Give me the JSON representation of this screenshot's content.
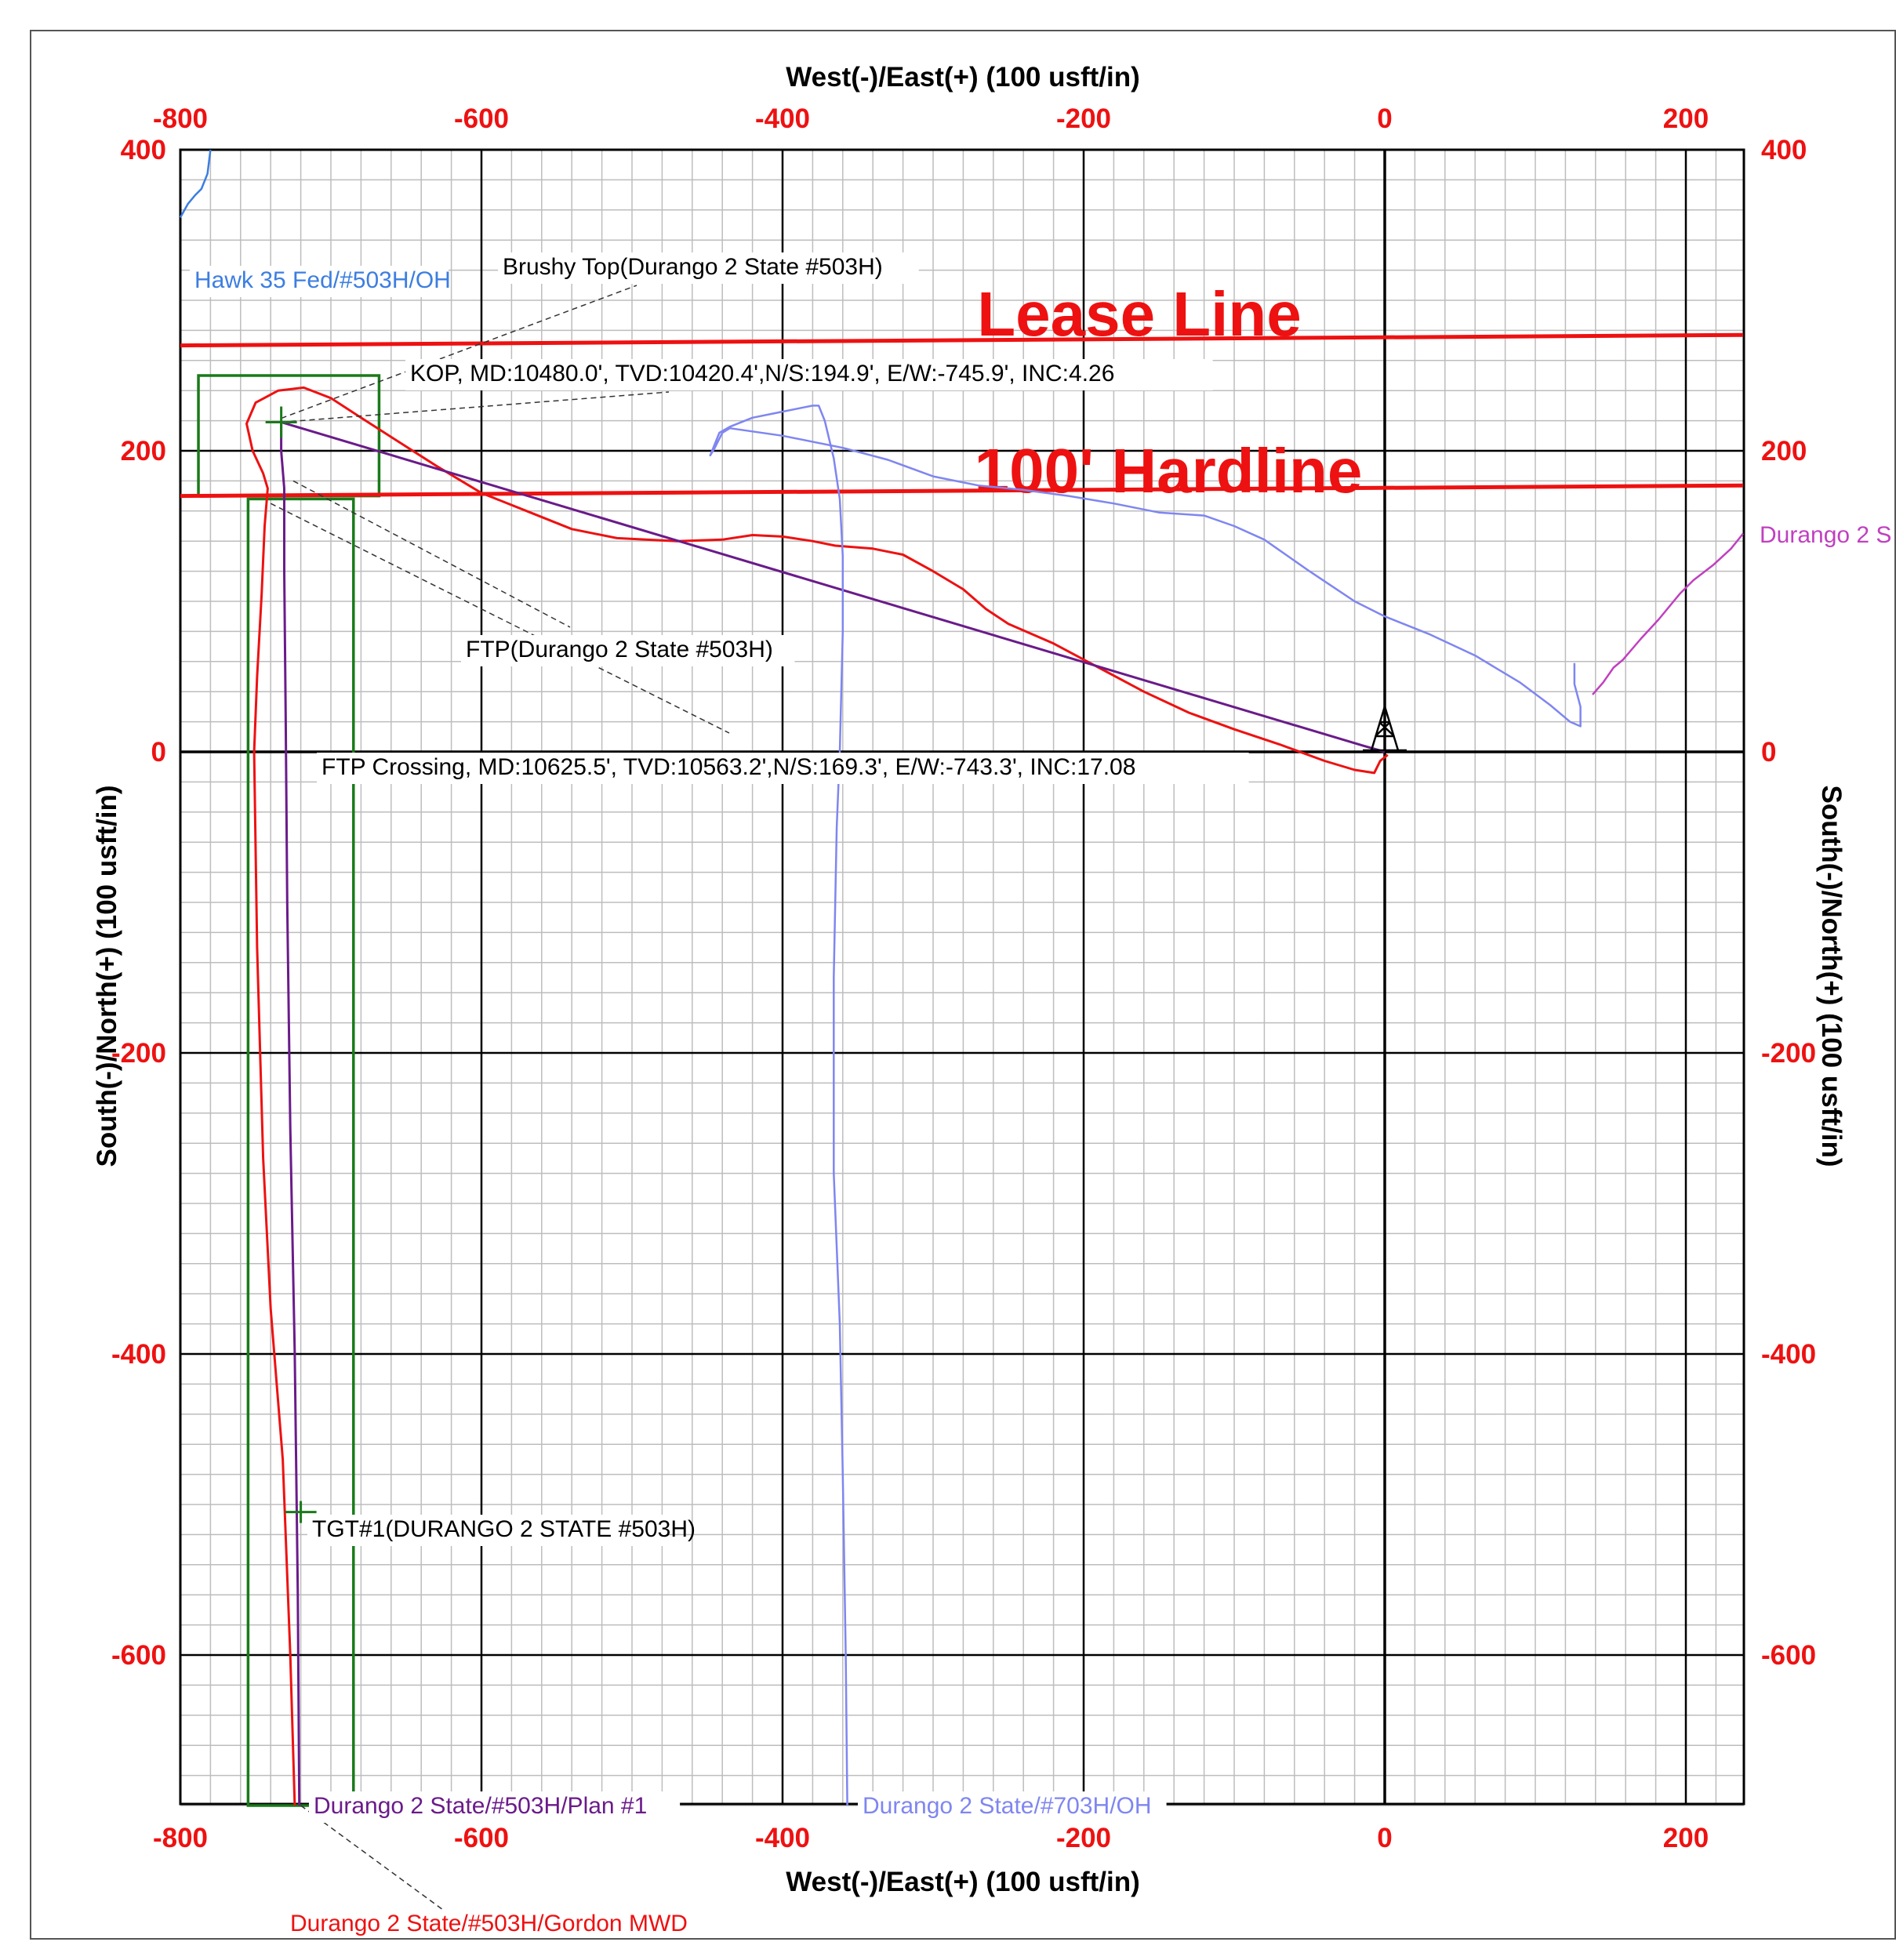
{
  "chart_data": {
    "type": "line",
    "title": "",
    "xlabel": "West(-)/East(+) (100 usft/in)",
    "ylabel": "South(-)/North(+) (100 usft/in)",
    "xlim": [
      -800,
      238
    ],
    "ylim": [
      -700,
      400
    ],
    "x_ticks": [
      -800,
      -600,
      -400,
      -200,
      0,
      200
    ],
    "y_ticks": [
      400,
      200,
      0,
      -200,
      -400,
      -600
    ],
    "grid": true,
    "colors": {
      "tick_labels": "#ee1111",
      "axis_titles": "#000000",
      "lease_line": "#ee1111",
      "hardline": "#ee1111",
      "gordon_mwd": "#ee1111",
      "plan": "#6a1b8a",
      "durango_703h": "#7f86f0",
      "hawk": "#3c7ee0",
      "durango_other": "#c040c0",
      "boxes": "#1a7a1a"
    },
    "lines": [
      {
        "name": "Lease Line",
        "label": "Lease Line",
        "points": [
          [
            -800,
            270
          ],
          [
            238,
            277
          ]
        ]
      },
      {
        "name": "100' Hardline",
        "label": "100' Hardline",
        "points": [
          [
            -800,
            170
          ],
          [
            238,
            177
          ]
        ]
      }
    ],
    "series": [
      {
        "name": "Durango 2 State/#503H/Gordon MWD",
        "points": [
          [
            -724,
            -700
          ],
          [
            -727,
            -600
          ],
          [
            -732,
            -470
          ],
          [
            -740,
            -370
          ],
          [
            -745,
            -270
          ],
          [
            -749,
            -130
          ],
          [
            -751,
            0
          ],
          [
            -749,
            50
          ],
          [
            -746,
            105
          ],
          [
            -744,
            150
          ],
          [
            -742,
            175
          ],
          [
            -745,
            185
          ],
          [
            -752,
            200
          ],
          [
            -756,
            218
          ],
          [
            -750,
            232
          ],
          [
            -735,
            240
          ],
          [
            -718,
            242
          ],
          [
            -700,
            235
          ],
          [
            -680,
            222
          ],
          [
            -655,
            206
          ],
          [
            -630,
            190
          ],
          [
            -600,
            172
          ],
          [
            -570,
            160
          ],
          [
            -540,
            148
          ],
          [
            -510,
            142
          ],
          [
            -470,
            140
          ],
          [
            -440,
            141
          ],
          [
            -420,
            144
          ],
          [
            -400,
            143
          ],
          [
            -380,
            140
          ],
          [
            -365,
            137
          ],
          [
            -340,
            135
          ],
          [
            -320,
            131
          ],
          [
            -300,
            120
          ],
          [
            -280,
            108
          ],
          [
            -265,
            95
          ],
          [
            -250,
            85
          ],
          [
            -220,
            72
          ],
          [
            -190,
            56
          ],
          [
            -160,
            40
          ],
          [
            -130,
            26
          ],
          [
            -100,
            15
          ],
          [
            -70,
            5
          ],
          [
            -40,
            -6
          ],
          [
            -20,
            -12
          ],
          [
            -7,
            -14
          ],
          [
            -3,
            -6
          ],
          [
            2,
            -2
          ]
        ]
      },
      {
        "name": "Durango 2 State/#503H/Plan #1",
        "points": [
          [
            -721,
            -700
          ],
          [
            -722,
            -560
          ],
          [
            -724,
            -400
          ],
          [
            -727,
            -250
          ],
          [
            -729,
            -100
          ],
          [
            -730,
            20
          ],
          [
            -731,
            120
          ],
          [
            -731,
            175
          ],
          [
            -733,
            200
          ],
          [
            -733,
            219
          ],
          [
            -14,
            4
          ],
          [
            0,
            0
          ]
        ]
      },
      {
        "name": "Durango 2 State/#703H/OH",
        "points": [
          [
            -357,
            -700
          ],
          [
            -358,
            -600
          ],
          [
            -360,
            -480
          ],
          [
            -362,
            -380
          ],
          [
            -366,
            -280
          ],
          [
            -366,
            -150
          ],
          [
            -364,
            -50
          ],
          [
            -362,
            0
          ],
          [
            -360,
            80
          ],
          [
            -360,
            130
          ],
          [
            -362,
            168
          ],
          [
            -366,
            195
          ],
          [
            -372,
            220
          ],
          [
            -376,
            230
          ],
          [
            -380,
            230
          ],
          [
            -390,
            228
          ],
          [
            -405,
            225
          ],
          [
            -420,
            222
          ],
          [
            -435,
            216
          ],
          [
            -442,
            212
          ],
          [
            -448,
            197
          ],
          [
            -445,
            202
          ],
          [
            -440,
            212
          ],
          [
            -435,
            215
          ],
          [
            -400,
            210
          ],
          [
            -360,
            202
          ],
          [
            -330,
            194
          ],
          [
            -300,
            183
          ],
          [
            -270,
            177
          ],
          [
            -240,
            174
          ],
          [
            -210,
            170
          ],
          [
            -180,
            165
          ],
          [
            -150,
            159
          ],
          [
            -120,
            157
          ],
          [
            -100,
            150
          ],
          [
            -80,
            141
          ],
          [
            -50,
            120
          ],
          [
            -20,
            100
          ],
          [
            0,
            90
          ],
          [
            30,
            78
          ],
          [
            60,
            64
          ],
          [
            90,
            46
          ],
          [
            110,
            31
          ],
          [
            123,
            20
          ],
          [
            130,
            17
          ],
          [
            130,
            30
          ],
          [
            126,
            45
          ],
          [
            126,
            55
          ],
          [
            126,
            59
          ]
        ]
      },
      {
        "name": "Hawk 35 Fed/#503H/OH",
        "points": [
          [
            -800,
            355
          ],
          [
            -795,
            364
          ],
          [
            -790,
            370
          ],
          [
            -786,
            374
          ],
          [
            -782,
            384
          ],
          [
            -780,
            400
          ]
        ]
      },
      {
        "name": "Durango 2 S",
        "points": [
          [
            138,
            38
          ],
          [
            145,
            46
          ],
          [
            152,
            56
          ],
          [
            158,
            61
          ],
          [
            170,
            75
          ],
          [
            182,
            88
          ],
          [
            196,
            105
          ],
          [
            205,
            114
          ],
          [
            218,
            124
          ],
          [
            230,
            135
          ],
          [
            238,
            145
          ]
        ]
      }
    ],
    "boxes": [
      {
        "name": "Hardline box",
        "rect": [
          [
            -788,
            170
          ],
          [
            -668,
            250
          ]
        ]
      },
      {
        "name": "Lease box",
        "rect": [
          [
            -755,
            -700
          ],
          [
            -685,
            168
          ]
        ]
      }
    ],
    "annotations": [
      {
        "text": "Brushy Top(Durango 2 State #503H)"
      },
      {
        "text": "KOP, MD:10480.0', TVD:10420.4',N/S:194.9', E/W:-745.9', INC:4.26"
      },
      {
        "text": "FTP(Durango 2 State #503H)"
      },
      {
        "text": "FTP Crossing, MD:10625.5', TVD:10563.2',N/S:169.3', E/W:-743.3', INC:17.08"
      },
      {
        "text": "TGT#1(DURANGO 2 STATE #503H)"
      },
      {
        "text": "Durango 2 State/#503H/Plan #1"
      },
      {
        "text": "Durango 2 State/#703H/OH"
      },
      {
        "text": "Durango 2 State/#503H/Gordon MWD"
      },
      {
        "text": "Hawk 35 Fed/#503H/OH"
      },
      {
        "text": "Durango 2 S"
      }
    ]
  }
}
